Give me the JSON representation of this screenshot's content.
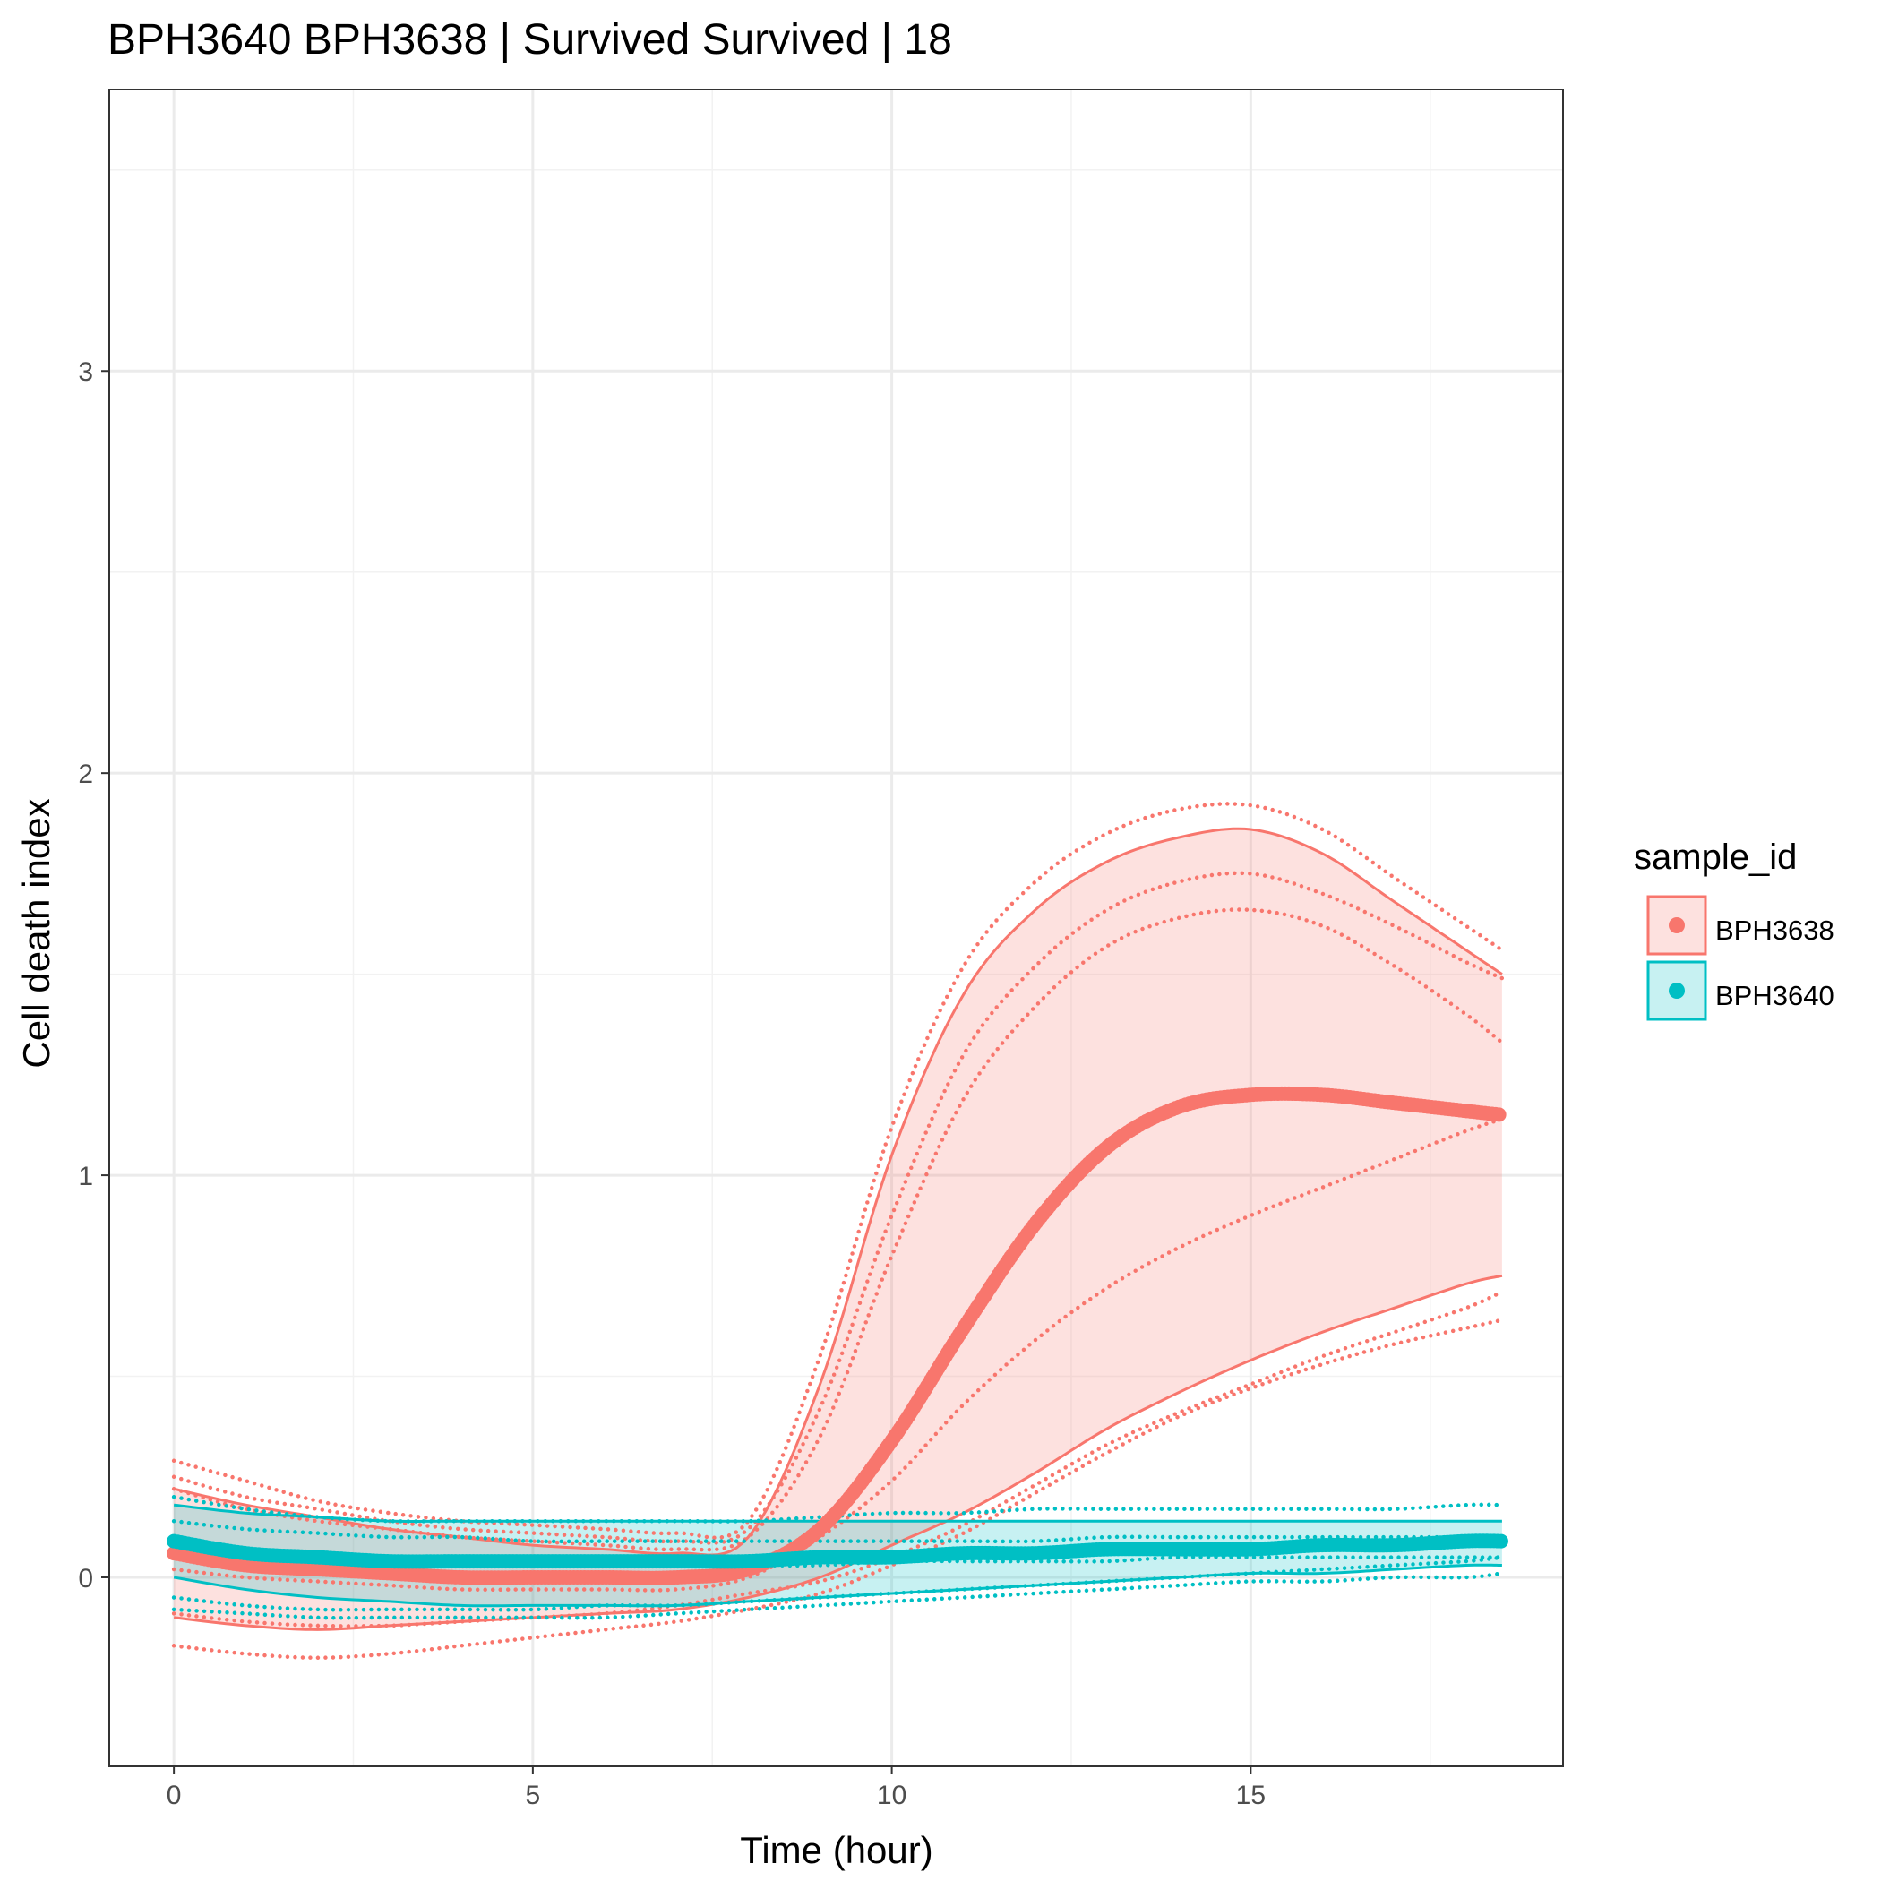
{
  "chart_data": {
    "type": "line",
    "title": "BPH3640 BPH3638 | Survived Survived | 18",
    "xlabel": "Time (hour)",
    "ylabel": "Cell death index",
    "xlim": [
      -0.9,
      19.35
    ],
    "ylim": [
      -0.47,
      3.7
    ],
    "x_ticks": [
      0,
      5,
      10,
      15
    ],
    "y_ticks": [
      0,
      1,
      2,
      3
    ],
    "grid": true,
    "legend": {
      "title": "sample_id",
      "position": "right",
      "entries": [
        "BPH3638",
        "BPH3640"
      ]
    },
    "series": [
      {
        "name": "BPH3638",
        "color": "#F8766D",
        "x": [
          0,
          1,
          2,
          3,
          4,
          5,
          6,
          7,
          8,
          9,
          10,
          11,
          12,
          13,
          14,
          15,
          16,
          17,
          18,
          18.5
        ],
        "mean": [
          0.06,
          0.03,
          0.02,
          0.01,
          0.0,
          0.0,
          0.0,
          0.0,
          0.02,
          0.12,
          0.34,
          0.62,
          0.88,
          1.07,
          1.17,
          1.2,
          1.2,
          1.18,
          1.16,
          1.15
        ],
        "ribbon_upper": [
          0.22,
          0.18,
          0.15,
          0.12,
          0.1,
          0.08,
          0.07,
          0.06,
          0.1,
          0.48,
          1.05,
          1.45,
          1.66,
          1.78,
          1.84,
          1.86,
          1.8,
          1.68,
          1.56,
          1.5
        ],
        "ribbon_lower": [
          -0.1,
          -0.12,
          -0.13,
          -0.12,
          -0.11,
          -0.1,
          -0.09,
          -0.08,
          -0.05,
          0.0,
          0.08,
          0.16,
          0.26,
          0.37,
          0.46,
          0.54,
          0.61,
          0.67,
          0.73,
          0.75
        ],
        "solid_lines": [
          [
            0.22,
            0.18,
            0.15,
            0.12,
            0.1,
            0.08,
            0.07,
            0.06,
            0.1,
            0.48,
            1.05,
            1.45,
            1.66,
            1.78,
            1.84,
            1.86,
            1.8,
            1.68,
            1.56,
            1.5
          ],
          [
            -0.1,
            -0.12,
            -0.13,
            -0.12,
            -0.11,
            -0.1,
            -0.09,
            -0.08,
            -0.05,
            0.0,
            0.08,
            0.16,
            0.26,
            0.37,
            0.46,
            0.54,
            0.61,
            0.67,
            0.73,
            0.75
          ]
        ],
        "dotted_lines": [
          [
            0.29,
            0.24,
            0.19,
            0.16,
            0.14,
            0.13,
            0.12,
            0.11,
            0.14,
            0.55,
            1.12,
            1.52,
            1.73,
            1.85,
            1.91,
            1.92,
            1.86,
            1.74,
            1.62,
            1.56
          ],
          [
            0.25,
            0.2,
            0.17,
            0.14,
            0.12,
            0.11,
            0.1,
            0.09,
            0.12,
            0.42,
            0.9,
            1.3,
            1.52,
            1.66,
            1.73,
            1.75,
            1.7,
            1.62,
            1.53,
            1.49
          ],
          [
            0.22,
            0.17,
            0.14,
            0.12,
            0.1,
            0.09,
            0.08,
            0.07,
            0.1,
            0.35,
            0.8,
            1.19,
            1.42,
            1.57,
            1.64,
            1.66,
            1.62,
            1.52,
            1.4,
            1.33
          ],
          [
            0.02,
            0.0,
            -0.01,
            -0.02,
            -0.03,
            -0.03,
            -0.03,
            -0.03,
            0.0,
            0.1,
            0.24,
            0.43,
            0.59,
            0.72,
            0.82,
            0.9,
            0.97,
            1.04,
            1.11,
            1.14
          ],
          [
            -0.09,
            -0.11,
            -0.12,
            -0.12,
            -0.11,
            -0.1,
            -0.09,
            -0.07,
            -0.04,
            -0.01,
            0.05,
            0.13,
            0.23,
            0.33,
            0.41,
            0.48,
            0.55,
            0.61,
            0.67,
            0.71
          ],
          [
            -0.17,
            -0.19,
            -0.2,
            -0.19,
            -0.17,
            -0.15,
            -0.13,
            -0.11,
            -0.08,
            -0.04,
            0.03,
            0.11,
            0.21,
            0.31,
            0.4,
            0.47,
            0.53,
            0.58,
            0.62,
            0.64
          ]
        ]
      },
      {
        "name": "BPH3640",
        "color": "#00BFC4",
        "x": [
          0,
          1,
          2,
          3,
          4,
          5,
          6,
          7,
          8,
          9,
          10,
          11,
          12,
          13,
          14,
          15,
          16,
          17,
          18,
          18.5
        ],
        "mean": [
          0.09,
          0.06,
          0.05,
          0.04,
          0.04,
          0.04,
          0.04,
          0.04,
          0.04,
          0.05,
          0.05,
          0.06,
          0.06,
          0.07,
          0.07,
          0.07,
          0.08,
          0.08,
          0.09,
          0.09
        ],
        "ribbon_upper": [
          0.18,
          0.16,
          0.15,
          0.14,
          0.14,
          0.14,
          0.14,
          0.14,
          0.14,
          0.14,
          0.14,
          0.14,
          0.14,
          0.14,
          0.14,
          0.14,
          0.14,
          0.14,
          0.14,
          0.14
        ],
        "ribbon_lower": [
          0.0,
          -0.03,
          -0.05,
          -0.06,
          -0.07,
          -0.07,
          -0.07,
          -0.07,
          -0.06,
          -0.05,
          -0.04,
          -0.03,
          -0.02,
          -0.01,
          0.0,
          0.01,
          0.01,
          0.02,
          0.03,
          0.03
        ],
        "solid_lines": [
          [
            0.18,
            0.16,
            0.15,
            0.14,
            0.14,
            0.14,
            0.14,
            0.14,
            0.14,
            0.14,
            0.14,
            0.14,
            0.14,
            0.14,
            0.14,
            0.14,
            0.14,
            0.14,
            0.14,
            0.14
          ],
          [
            0.0,
            -0.03,
            -0.05,
            -0.06,
            -0.07,
            -0.07,
            -0.07,
            -0.07,
            -0.06,
            -0.05,
            -0.04,
            -0.03,
            -0.02,
            -0.01,
            0.0,
            0.01,
            0.01,
            0.02,
            0.03,
            0.03
          ]
        ],
        "dotted_lines": [
          [
            0.2,
            0.17,
            0.15,
            0.14,
            0.14,
            0.14,
            0.14,
            0.14,
            0.14,
            0.15,
            0.16,
            0.16,
            0.17,
            0.17,
            0.17,
            0.17,
            0.17,
            0.17,
            0.18,
            0.18
          ],
          [
            0.14,
            0.12,
            0.11,
            0.1,
            0.1,
            0.09,
            0.09,
            0.09,
            0.09,
            0.09,
            0.09,
            0.09,
            0.09,
            0.1,
            0.1,
            0.1,
            0.1,
            0.1,
            0.1,
            0.1
          ],
          [
            0.07,
            0.05,
            0.04,
            0.03,
            0.03,
            0.03,
            0.03,
            0.03,
            0.03,
            0.03,
            0.04,
            0.04,
            0.04,
            0.04,
            0.05,
            0.05,
            0.05,
            0.05,
            0.05,
            0.05
          ],
          [
            -0.08,
            -0.09,
            -0.1,
            -0.1,
            -0.1,
            -0.1,
            -0.1,
            -0.09,
            -0.08,
            -0.07,
            -0.06,
            -0.05,
            -0.04,
            -0.03,
            -0.02,
            -0.01,
            -0.01,
            0.0,
            0.0,
            0.01
          ],
          [
            -0.05,
            -0.07,
            -0.08,
            -0.08,
            -0.08,
            -0.08,
            -0.07,
            -0.07,
            -0.06,
            -0.05,
            -0.04,
            -0.03,
            -0.02,
            -0.01,
            0.0,
            0.01,
            0.02,
            0.03,
            0.04,
            0.05
          ]
        ]
      }
    ]
  }
}
